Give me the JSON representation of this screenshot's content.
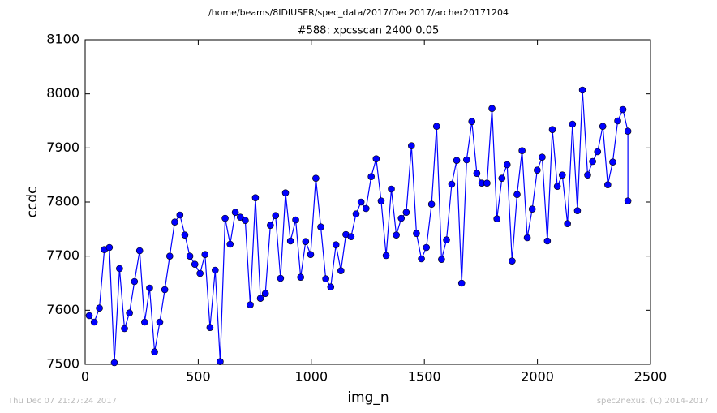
{
  "header": "/home/beams/8IDIUSER/spec_data/2017/Dec2017/archer20171204",
  "footer_left": "Thu Dec 07 21:27:24 2017",
  "footer_right": "spec2nexus, (C) 2014-2017",
  "chart_data": {
    "type": "line",
    "title": "#588: xpcsscan 2400 0.05",
    "x_label": "img_n",
    "y_label": "ccdc",
    "xlim": [
      0,
      2500
    ],
    "xticks": [
      0,
      500,
      1000,
      1500,
      2000,
      2500
    ],
    "ylim": [
      7500,
      8100
    ],
    "yticks": [
      7500,
      7600,
      7700,
      7800,
      7900,
      8000,
      8100
    ],
    "grid": false,
    "series": [
      {
        "color": "#0000ff",
        "x": [
          18,
          40,
          63,
          85,
          107,
          129,
          152,
          174,
          196,
          218,
          241,
          263,
          285,
          307,
          330,
          352,
          374,
          396,
          419,
          441,
          463,
          485,
          508,
          530,
          552,
          575,
          597,
          619,
          641,
          664,
          686,
          708,
          730,
          753,
          775,
          797,
          819,
          842,
          864,
          886,
          908,
          931,
          953,
          975,
          997,
          1020,
          1042,
          1064,
          1086,
          1109,
          1131,
          1153,
          1176,
          1198,
          1220,
          1242,
          1265,
          1287,
          1309,
          1331,
          1354,
          1376,
          1398,
          1420,
          1443,
          1465,
          1487,
          1509,
          1532,
          1554,
          1576,
          1598,
          1621,
          1643,
          1665,
          1687,
          1710,
          1732,
          1754,
          1777,
          1799,
          1821,
          1843,
          1866,
          1888,
          1910,
          1932,
          1955,
          1977,
          1999,
          2021,
          2044,
          2066,
          2088,
          2110,
          2133,
          2155,
          2177,
          2199,
          2222,
          2244,
          2266,
          2289,
          2311,
          2333,
          2355,
          2378,
          2400,
          2400
        ],
        "values": [
          7590,
          7578,
          7604,
          7712,
          7716,
          7503,
          7677,
          7566,
          7595,
          7653,
          7710,
          7578,
          7641,
          7523,
          7578,
          7638,
          7700,
          7763,
          7776,
          7739,
          7700,
          7685,
          7668,
          7703,
          7568,
          7674,
          7505,
          7770,
          7722,
          7781,
          7772,
          7766,
          7610,
          7808,
          7622,
          7631,
          7757,
          7775,
          7659,
          7817,
          7728,
          7767,
          7661,
          7727,
          7703,
          7844,
          7754,
          7658,
          7643,
          7721,
          7673,
          7740,
          7736,
          7778,
          7800,
          7788,
          7847,
          7880,
          7802,
          7701,
          7824,
          7739,
          7770,
          7781,
          7904,
          7742,
          7695,
          7716,
          7796,
          7940,
          7694,
          7730,
          7833,
          7877,
          7650,
          7878,
          7949,
          7853,
          7835,
          7835,
          7973,
          7769,
          7844,
          7869,
          7691,
          7814,
          7895,
          7734,
          7787,
          7859,
          7883,
          7728,
          7934,
          7829,
          7850,
          7760,
          7944,
          7784,
          8007,
          7850,
          7875,
          7893,
          7940,
          7832,
          7874,
          7950,
          7971,
          7931,
          7802
        ]
      }
    ]
  }
}
